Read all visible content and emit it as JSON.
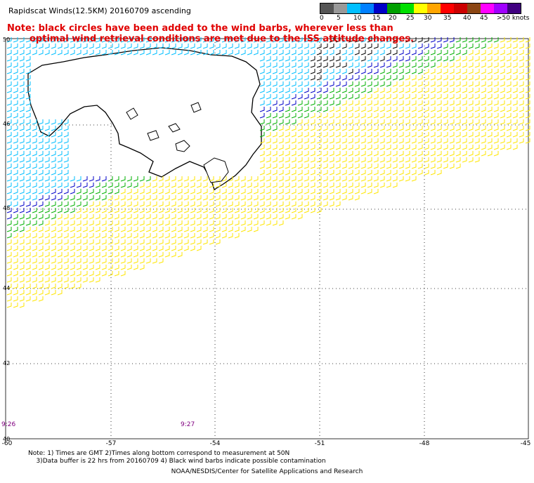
{
  "title": "Rapidscat Winds(12.5KM) 20160709 ascending",
  "note": {
    "line1": "Note: black circles have been added to the wind barbs, wherever less than",
    "line2": "optimal wind retrieval conditions are met due to the ISS attitude changes."
  },
  "legend": {
    "colors": [
      "#555555",
      "#999999",
      "#00bfff",
      "#0080ff",
      "#0000c8",
      "#00a000",
      "#00e000",
      "#ffff00",
      "#ffa500",
      "#ff0000",
      "#cc0000",
      "#8b4513",
      "#ff00ff",
      "#a000ff",
      "#400080"
    ],
    "labels": [
      "0",
      "5",
      "10",
      "15",
      "20",
      "25",
      "30",
      "35",
      "40",
      "45",
      ">50 knots"
    ]
  },
  "map": {
    "lat_labels": [
      "50",
      "46",
      "48",
      "44",
      "42",
      "40"
    ],
    "lon_labels": [
      "-60",
      "-57",
      "-54",
      "-51",
      "-48",
      "-45"
    ],
    "time_labels": [
      "9:26",
      "9:27"
    ]
  },
  "footer": {
    "line1": "Note: 1) Times are GMT 2)Times along bottom correspond to measurement at 50N",
    "line2": "3)Data buffer is 22 hrs from 20160709 4) Black wind barbs indicate possible contamination",
    "credit": "NOAA/NESDIS/Center for Satellite Applications and Research"
  }
}
